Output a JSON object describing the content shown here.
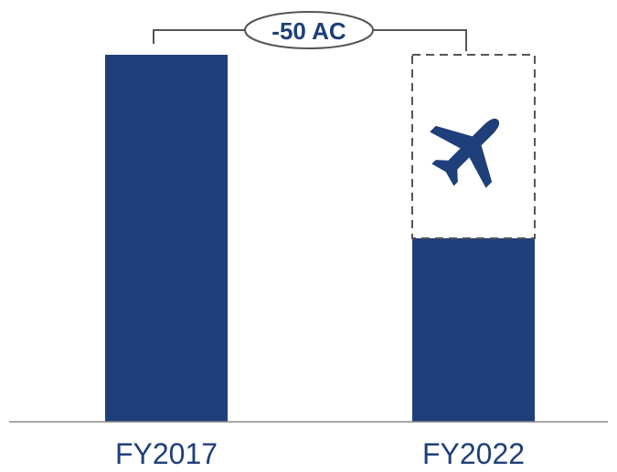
{
  "chart_data": {
    "type": "bar",
    "categories": [
      "FY2017",
      "FY2022"
    ],
    "values": [
      100,
      50
    ],
    "ghost_values": [
      null,
      100
    ],
    "ylim": [
      0,
      100
    ],
    "annotation": {
      "text": "-50 AC",
      "icon": "airplane-icon"
    },
    "colors": {
      "bar": "#1f3f7a",
      "ghost_outline": "#555555",
      "axis": "#8a8a8a",
      "label": "#1f3f7a"
    }
  }
}
